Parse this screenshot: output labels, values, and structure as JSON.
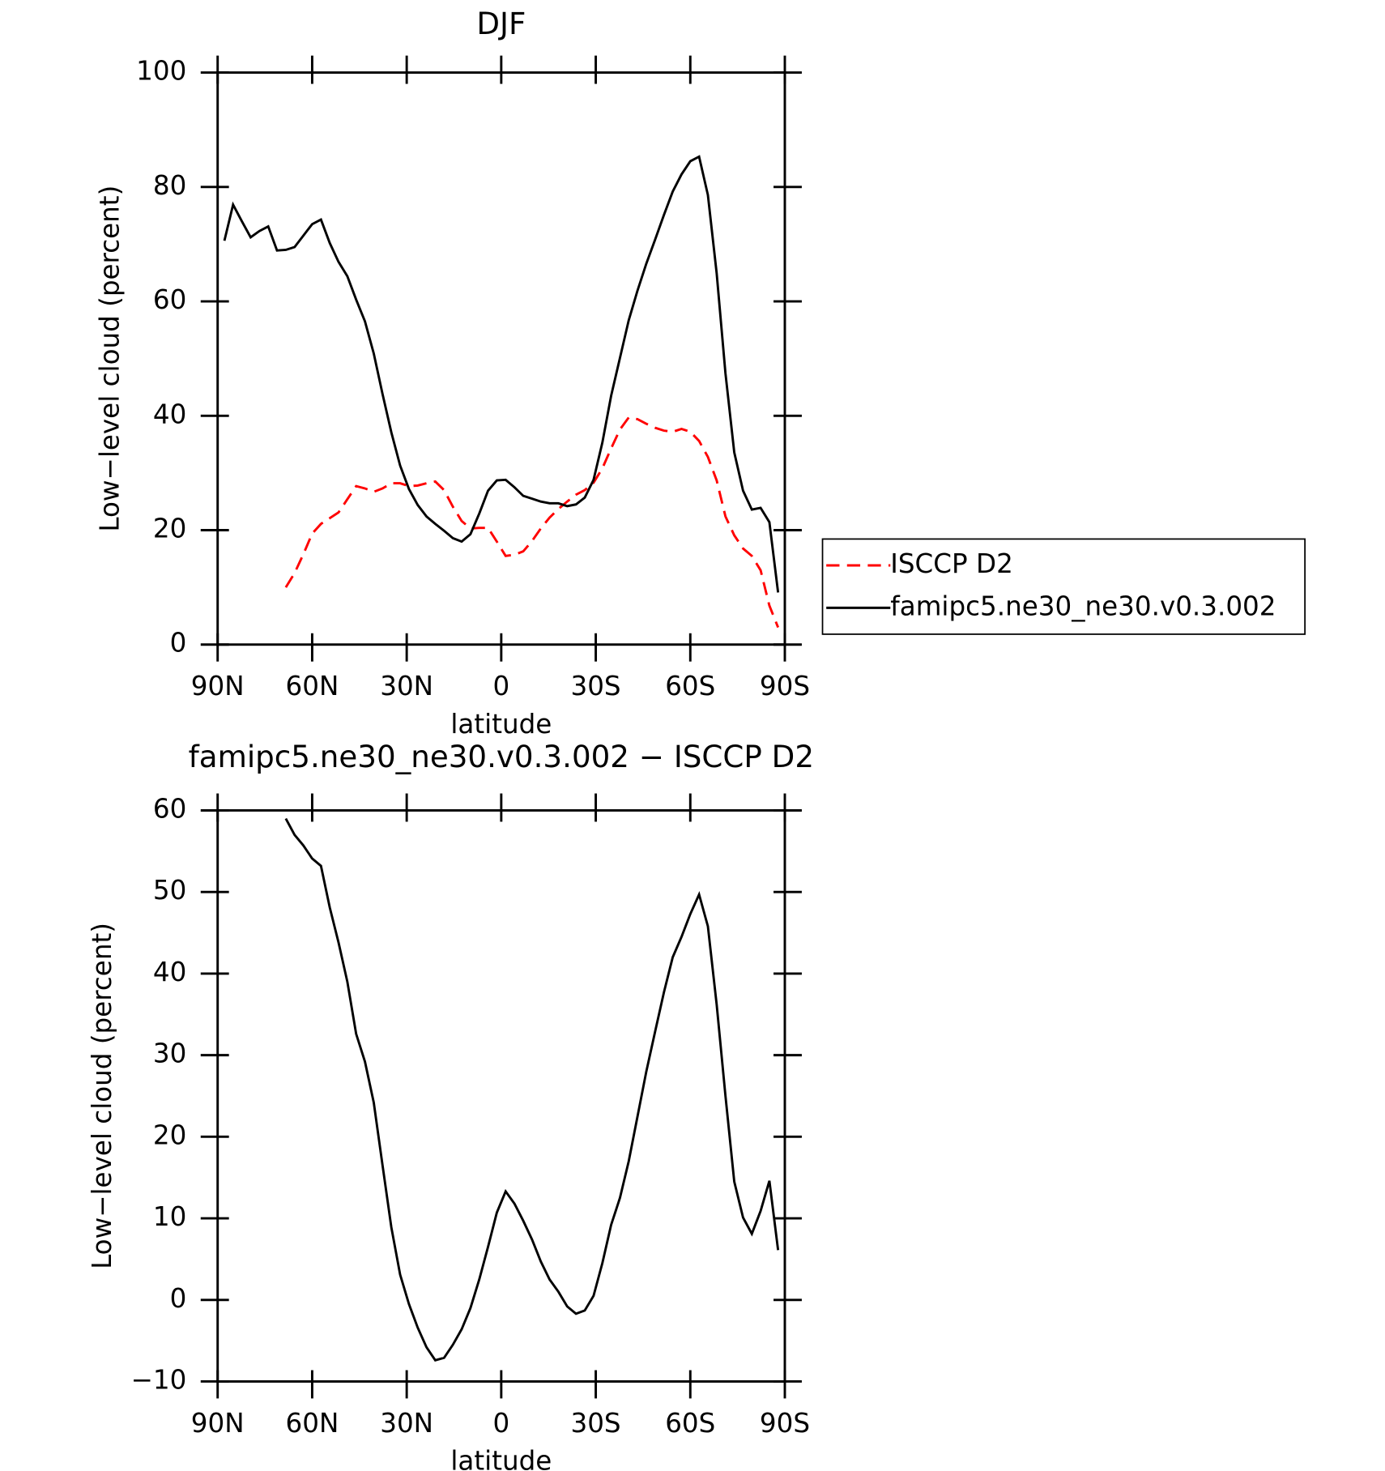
{
  "chart_data": [
    {
      "type": "line",
      "title": "DJF",
      "x_label": "latitude",
      "y_label": "Low−level cloud (percent)",
      "x": [
        87.86,
        85.1,
        82.31,
        79.53,
        76.74,
        73.95,
        71.16,
        68.37,
        65.58,
        62.79,
        60.0,
        57.21,
        54.42,
        51.63,
        48.84,
        46.04,
        43.25,
        40.46,
        37.67,
        34.88,
        32.09,
        29.3,
        26.51,
        23.72,
        20.93,
        18.14,
        15.35,
        12.56,
        9.77,
        6.98,
        4.19,
        1.4,
        -1.4,
        -4.19,
        -6.98,
        -9.77,
        -12.56,
        -15.35,
        -18.14,
        -20.93,
        -23.72,
        -26.51,
        -29.3,
        -32.09,
        -34.88,
        -37.67,
        -40.46,
        -43.25,
        -46.04,
        -48.84,
        -51.63,
        -54.42,
        -57.21,
        -60.0,
        -62.79,
        -65.58,
        -68.37,
        -71.16,
        -73.95,
        -76.74,
        -79.53,
        -82.31,
        -85.1,
        -87.86
      ],
      "xlim": [
        90,
        -90
      ],
      "xticks": [
        {
          "value": 90,
          "label": "90N"
        },
        {
          "value": 60,
          "label": "60N"
        },
        {
          "value": 30,
          "label": "30N"
        },
        0,
        {
          "value": -30,
          "label": "30S"
        },
        {
          "value": -60,
          "label": "60S"
        },
        {
          "value": -90,
          "label": "90S"
        }
      ],
      "ylim": [
        0,
        100
      ],
      "yticks": [
        0,
        20,
        40,
        60,
        80,
        100
      ],
      "legend": "right",
      "series": [
        {
          "name": "ISCCP D2",
          "color": "#ff0000",
          "line_style": "dashed",
          "values": [
            null,
            null,
            null,
            null,
            null,
            null,
            null,
            10.0,
            12.5,
            15.8,
            19.4,
            21.1,
            22.1,
            23.1,
            25.4,
            27.7,
            27.3,
            26.7,
            27.3,
            28.2,
            28.2,
            27.7,
            27.8,
            28.2,
            28.5,
            27.0,
            24.1,
            21.6,
            20.3,
            20.4,
            20.4,
            18.0,
            15.5,
            15.7,
            16.3,
            18.1,
            20.3,
            22.2,
            23.7,
            25.0,
            26.2,
            27.0,
            28.3,
            30.8,
            34.3,
            37.6,
            39.7,
            39.4,
            38.6,
            37.9,
            37.4,
            37.2,
            37.7,
            37.2,
            35.6,
            32.8,
            28.7,
            22.4,
            19.1,
            16.8,
            15.5,
            13.0,
            6.8,
            3.0
          ]
        },
        {
          "name": "famipc5.ne30_ne30.v0.3.002",
          "color": "#000000",
          "line_style": "solid",
          "values": [
            70.6,
            76.9,
            74.0,
            71.2,
            72.3,
            73.1,
            68.9,
            69.0,
            69.5,
            71.5,
            73.5,
            74.3,
            70.2,
            66.9,
            64.4,
            60.3,
            56.5,
            50.9,
            43.8,
            37.1,
            31.3,
            27.2,
            24.4,
            22.4,
            21.1,
            19.9,
            18.6,
            18.0,
            19.3,
            22.9,
            26.9,
            28.7,
            28.8,
            27.5,
            26.0,
            25.5,
            25.0,
            24.7,
            24.7,
            24.2,
            24.5,
            25.7,
            28.8,
            35.3,
            43.5,
            50.1,
            56.7,
            61.9,
            66.6,
            70.8,
            75.1,
            79.2,
            82.2,
            84.5,
            85.3,
            78.6,
            64.9,
            47.4,
            33.6,
            26.9,
            23.6,
            23.9,
            21.4,
            9.1
          ]
        }
      ]
    },
    {
      "type": "line",
      "title": "famipc5.ne30_ne30.v0.3.002 − ISCCP D2",
      "x_label": "latitude",
      "y_label": "Low−level cloud (percent)",
      "x": [
        87.86,
        85.1,
        82.31,
        79.53,
        76.74,
        73.95,
        71.16,
        68.37,
        65.58,
        62.79,
        60.0,
        57.21,
        54.42,
        51.63,
        48.84,
        46.04,
        43.25,
        40.46,
        37.67,
        34.88,
        32.09,
        29.3,
        26.51,
        23.72,
        20.93,
        18.14,
        15.35,
        12.56,
        9.77,
        6.98,
        4.19,
        1.4,
        -1.4,
        -4.19,
        -6.98,
        -9.77,
        -12.56,
        -15.35,
        -18.14,
        -20.93,
        -23.72,
        -26.51,
        -29.3,
        -32.09,
        -34.88,
        -37.67,
        -40.46,
        -43.25,
        -46.04,
        -48.84,
        -51.63,
        -54.42,
        -57.21,
        -60.0,
        -62.79,
        -65.58,
        -68.37,
        -71.16,
        -73.95,
        -76.74,
        -79.53,
        -82.31,
        -85.1,
        -87.86
      ],
      "xlim": [
        90,
        -90
      ],
      "xticks": [
        {
          "value": 90,
          "label": "90N"
        },
        {
          "value": 60,
          "label": "60N"
        },
        {
          "value": 30,
          "label": "30N"
        },
        0,
        {
          "value": -30,
          "label": "30S"
        },
        {
          "value": -60,
          "label": "60S"
        },
        {
          "value": -90,
          "label": "90S"
        }
      ],
      "ylim": [
        -10,
        60
      ],
      "yticks": [
        {
          "value": -10,
          "label": "−10"
        },
        0,
        10,
        20,
        30,
        40,
        50,
        60
      ],
      "series": [
        {
          "color": "#000000",
          "line_style": "solid",
          "values": [
            null,
            null,
            null,
            null,
            null,
            null,
            null,
            59.0,
            57.0,
            55.7,
            54.1,
            53.2,
            48.1,
            43.8,
            39.0,
            32.6,
            29.2,
            24.2,
            16.5,
            8.9,
            3.1,
            -0.5,
            -3.4,
            -5.8,
            -7.4,
            -7.1,
            -5.5,
            -3.6,
            -1.0,
            2.5,
            6.5,
            10.7,
            13.3,
            11.8,
            9.7,
            7.4,
            4.7,
            2.5,
            1.0,
            -0.8,
            -1.7,
            -1.3,
            0.5,
            4.5,
            9.2,
            12.5,
            17.0,
            22.5,
            28.0,
            32.9,
            37.7,
            42.0,
            44.5,
            47.3,
            49.7,
            45.8,
            36.2,
            25.0,
            14.5,
            10.1,
            8.1,
            10.9,
            14.6,
            6.1
          ]
        }
      ]
    }
  ]
}
